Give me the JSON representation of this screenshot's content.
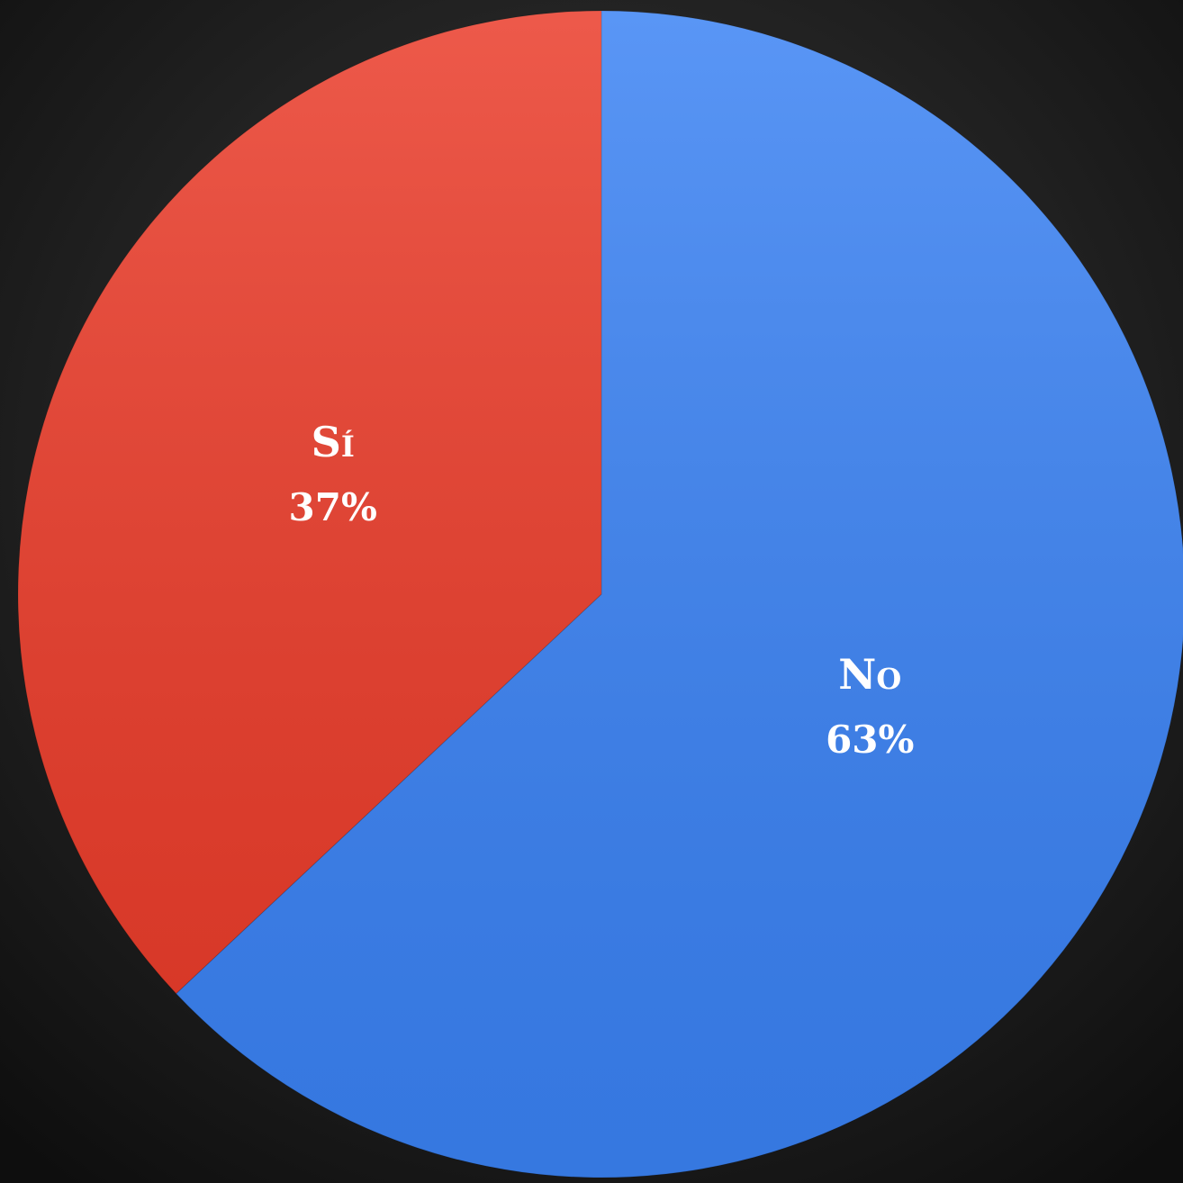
{
  "chart_data": {
    "type": "pie",
    "categories": [
      "No",
      "Sí"
    ],
    "values": [
      63,
      37
    ],
    "value_labels": [
      "63%",
      "37%"
    ],
    "colors": [
      "#3a82f4",
      "#ea3a28"
    ]
  }
}
